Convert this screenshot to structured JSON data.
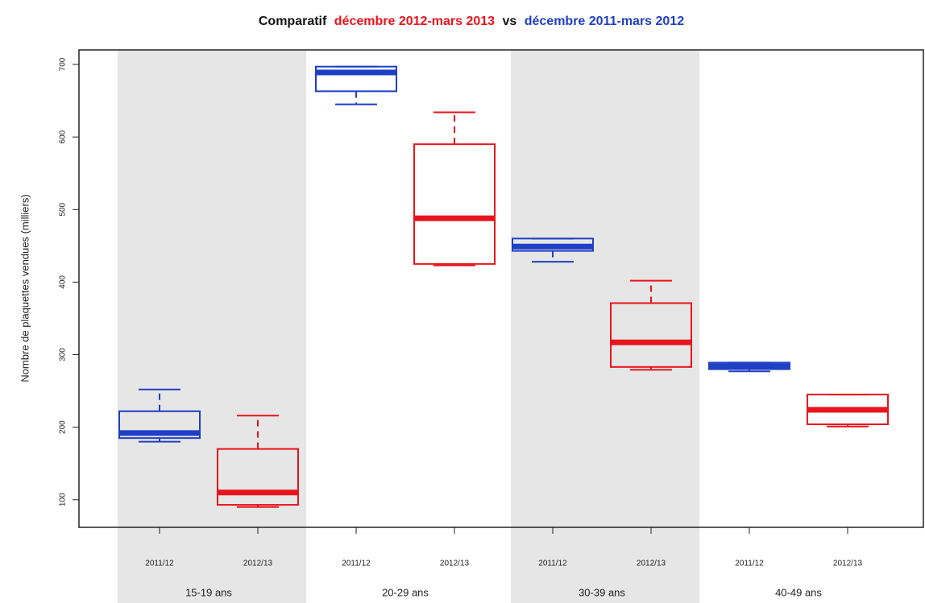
{
  "chart_data": {
    "type": "boxplot",
    "title_parts": [
      {
        "text": "Comparatif",
        "color": "#111111"
      },
      {
        "text": "décembre 2012-mars 2013",
        "color": "#e8141c"
      },
      {
        "text": "vs",
        "color": "#111111"
      },
      {
        "text": "décembre 2011-mars 2012",
        "color": "#1f3fc4"
      }
    ],
    "y_label": "Nombre de plaquettes vendues (milliers)",
    "ylim": [
      62,
      720
    ],
    "yticks": [
      100,
      200,
      300,
      400,
      500,
      600,
      700
    ],
    "shade_color": "#e6e6e6",
    "groups": [
      {
        "name": "15-19 ans",
        "boxes": [
          {
            "label": "2011/12",
            "color": "#1f3fc4",
            "min": 180,
            "q1": 185,
            "median": 192,
            "q3": 222,
            "max": 252
          },
          {
            "label": "2012/13",
            "color": "#e8141c",
            "min": 90,
            "q1": 93,
            "median": 110,
            "q3": 170,
            "max": 216
          }
        ]
      },
      {
        "name": "20-29 ans",
        "boxes": [
          {
            "label": "2011/12",
            "color": "#1f3fc4",
            "min": 645,
            "q1": 663,
            "median": 689,
            "q3": 697,
            "max": 697
          },
          {
            "label": "2012/13",
            "color": "#e8141c",
            "min": 423,
            "q1": 425,
            "median": 488,
            "q3": 590,
            "max": 634
          }
        ]
      },
      {
        "name": "30-39 ans",
        "boxes": [
          {
            "label": "2011/12",
            "color": "#1f3fc4",
            "min": 428,
            "q1": 443,
            "median": 449,
            "q3": 460,
            "max": 460
          },
          {
            "label": "2012/13",
            "color": "#e8141c",
            "min": 279,
            "q1": 283,
            "median": 317,
            "q3": 371,
            "max": 402
          }
        ]
      },
      {
        "name": "40-49 ans",
        "boxes": [
          {
            "label": "2011/12",
            "color": "#1f3fc4",
            "min": 277,
            "q1": 280,
            "median": 284,
            "q3": 289,
            "max": 289
          },
          {
            "label": "2012/13",
            "color": "#e8141c",
            "min": 201,
            "q1": 204,
            "median": 224,
            "q3": 245,
            "max": 245
          }
        ]
      }
    ]
  }
}
